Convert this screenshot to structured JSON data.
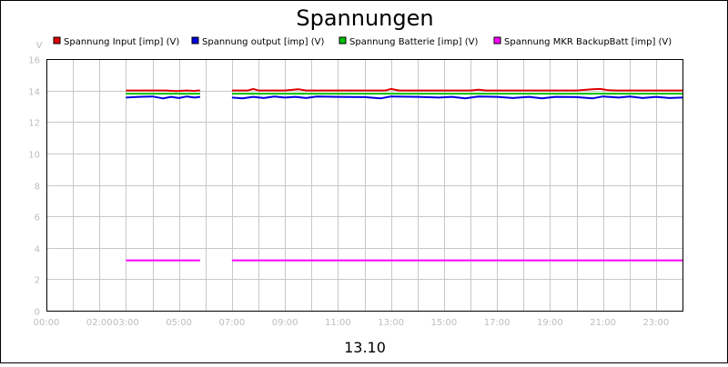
{
  "chart_data": {
    "type": "line",
    "title": "Spannungen",
    "xlabel": "13.10",
    "ylabel": "V",
    "ylim": [
      0,
      16
    ],
    "yticks": [
      "0",
      "2",
      "4",
      "6",
      "8",
      "10",
      "12",
      "14",
      "16"
    ],
    "xlim": [
      0,
      24
    ],
    "xticks": [
      "00:00",
      "02:00",
      "03:00",
      "05:00",
      "07:00",
      "09:00",
      "11:00",
      "13:00",
      "15:00",
      "17:00",
      "19:00",
      "21:00",
      "23:00"
    ],
    "xtick_hours": [
      0,
      2,
      3,
      5,
      7,
      9,
      11,
      13,
      15,
      17,
      19,
      21,
      23
    ],
    "grid": true,
    "legend_position": "top",
    "series": [
      {
        "name": "Spannung Input [imp] (V)",
        "color": "#e00000",
        "segments": [
          [
            [
              3.0,
              14.0
            ],
            [
              4.5,
              14.0
            ],
            [
              4.9,
              13.96
            ],
            [
              5.3,
              14.0
            ],
            [
              5.6,
              13.97
            ],
            [
              5.7,
              14.0
            ],
            [
              5.8,
              14.0
            ]
          ],
          [
            [
              7.0,
              14.0
            ],
            [
              7.6,
              14.0
            ],
            [
              7.8,
              14.1
            ],
            [
              8.0,
              14.0
            ],
            [
              9.0,
              14.0
            ],
            [
              9.5,
              14.08
            ],
            [
              9.8,
              14.0
            ],
            [
              11.0,
              14.0
            ],
            [
              12.8,
              14.0
            ],
            [
              13.0,
              14.1
            ],
            [
              13.3,
              14.0
            ],
            [
              16.0,
              14.0
            ],
            [
              16.3,
              14.05
            ],
            [
              16.6,
              14.0
            ],
            [
              19.0,
              14.0
            ],
            [
              20.0,
              14.0
            ],
            [
              20.6,
              14.08
            ],
            [
              20.9,
              14.1
            ],
            [
              21.2,
              14.02
            ],
            [
              21.5,
              14.0
            ],
            [
              22.5,
              14.0
            ],
            [
              23.0,
              14.0
            ],
            [
              23.6,
              14.0
            ],
            [
              24.0,
              14.0
            ]
          ]
        ]
      },
      {
        "name": "Spannung output [imp] (V)",
        "color": "#0000e0",
        "segments": [
          [
            [
              3.0,
              13.55
            ],
            [
              3.5,
              13.6
            ],
            [
              4.0,
              13.62
            ],
            [
              4.4,
              13.5
            ],
            [
              4.7,
              13.6
            ],
            [
              5.0,
              13.52
            ],
            [
              5.3,
              13.62
            ],
            [
              5.6,
              13.55
            ],
            [
              5.8,
              13.6
            ]
          ],
          [
            [
              7.0,
              13.55
            ],
            [
              7.4,
              13.5
            ],
            [
              7.8,
              13.6
            ],
            [
              8.2,
              13.52
            ],
            [
              8.6,
              13.62
            ],
            [
              9.0,
              13.55
            ],
            [
              9.4,
              13.6
            ],
            [
              9.8,
              13.52
            ],
            [
              10.2,
              13.62
            ],
            [
              11.0,
              13.6
            ],
            [
              12.0,
              13.58
            ],
            [
              12.6,
              13.5
            ],
            [
              13.0,
              13.62
            ],
            [
              14.0,
              13.6
            ],
            [
              14.8,
              13.55
            ],
            [
              15.3,
              13.6
            ],
            [
              15.8,
              13.5
            ],
            [
              16.3,
              13.62
            ],
            [
              17.0,
              13.6
            ],
            [
              17.6,
              13.52
            ],
            [
              18.2,
              13.6
            ],
            [
              18.7,
              13.5
            ],
            [
              19.2,
              13.6
            ],
            [
              20.0,
              13.58
            ],
            [
              20.6,
              13.5
            ],
            [
              21.0,
              13.62
            ],
            [
              21.6,
              13.55
            ],
            [
              22.0,
              13.62
            ],
            [
              22.5,
              13.52
            ],
            [
              23.0,
              13.6
            ],
            [
              23.5,
              13.52
            ],
            [
              24.0,
              13.55
            ]
          ]
        ]
      },
      {
        "name": "Spannung Batterie [imp] (V)",
        "color": "#00c000",
        "segments": [
          [
            [
              3.0,
              13.8
            ],
            [
              5.8,
              13.8
            ]
          ],
          [
            [
              7.0,
              13.8
            ],
            [
              24.0,
              13.8
            ]
          ]
        ]
      },
      {
        "name": "Spannung MKR BackupBatt [imp] (V)",
        "color": "#ff00ff",
        "segments": [
          [
            [
              3.0,
              3.2
            ],
            [
              5.8,
              3.2
            ]
          ],
          [
            [
              7.0,
              3.2
            ],
            [
              24.0,
              3.2
            ]
          ]
        ]
      }
    ]
  }
}
